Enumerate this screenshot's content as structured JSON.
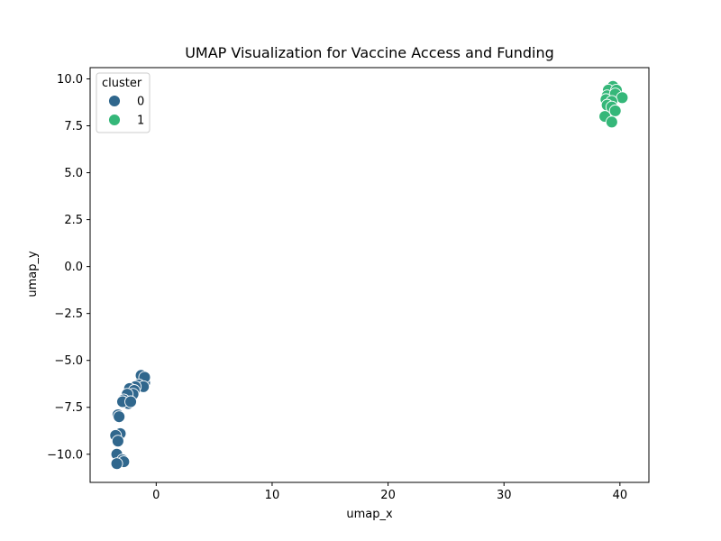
{
  "chart_data": {
    "type": "scatter",
    "title": "UMAP Visualization for Vaccine Access and Funding",
    "xlabel": "umap_x",
    "ylabel": "umap_y",
    "xlim": [
      -5.7,
      42.5
    ],
    "ylim": [
      -11.5,
      10.6
    ],
    "xticks": [
      0,
      10,
      20,
      30,
      40
    ],
    "yticks": [
      -10.0,
      -7.5,
      -5.0,
      -2.5,
      0.0,
      2.5,
      5.0,
      7.5,
      10.0
    ],
    "xtick_labels": [
      "0",
      "10",
      "20",
      "30",
      "40"
    ],
    "ytick_labels": [
      "−10.0",
      "−7.5",
      "−5.0",
      "−2.5",
      "0.0",
      "2.5",
      "5.0",
      "7.5",
      "10.0"
    ],
    "grid": false,
    "legend": {
      "title": "cluster",
      "placement": "top-left",
      "entries": [
        {
          "label": "0",
          "color": "#30678d"
        },
        {
          "label": "1",
          "color": "#35b779"
        }
      ]
    },
    "series": [
      {
        "name": "0",
        "color": "#30678d",
        "points": [
          {
            "x": -1.3,
            "y": -5.8
          },
          {
            "x": -1.0,
            "y": -6.2
          },
          {
            "x": -1.0,
            "y": -5.9
          },
          {
            "x": -1.5,
            "y": -6.3
          },
          {
            "x": -1.1,
            "y": -6.4
          },
          {
            "x": -1.8,
            "y": -6.4
          },
          {
            "x": -2.3,
            "y": -6.5
          },
          {
            "x": -1.9,
            "y": -6.6
          },
          {
            "x": -2.0,
            "y": -6.8
          },
          {
            "x": -2.5,
            "y": -6.8
          },
          {
            "x": -2.8,
            "y": -7.1
          },
          {
            "x": -2.4,
            "y": -7.3
          },
          {
            "x": -2.9,
            "y": -7.2
          },
          {
            "x": -2.2,
            "y": -7.2
          },
          {
            "x": -3.3,
            "y": -7.9
          },
          {
            "x": -3.2,
            "y": -8.0
          },
          {
            "x": -3.1,
            "y": -8.9
          },
          {
            "x": -3.5,
            "y": -9.0
          },
          {
            "x": -3.3,
            "y": -9.3
          },
          {
            "x": -3.4,
            "y": -10.0
          },
          {
            "x": -2.9,
            "y": -10.3
          },
          {
            "x": -2.8,
            "y": -10.4
          },
          {
            "x": -3.4,
            "y": -10.5
          }
        ]
      },
      {
        "name": "1",
        "color": "#35b779",
        "points": [
          {
            "x": 39.4,
            "y": 9.6
          },
          {
            "x": 39.0,
            "y": 9.4
          },
          {
            "x": 39.7,
            "y": 9.4
          },
          {
            "x": 38.9,
            "y": 9.1
          },
          {
            "x": 39.6,
            "y": 9.2
          },
          {
            "x": 40.2,
            "y": 9.0
          },
          {
            "x": 38.8,
            "y": 8.9
          },
          {
            "x": 39.3,
            "y": 8.8
          },
          {
            "x": 38.9,
            "y": 8.6
          },
          {
            "x": 39.3,
            "y": 8.5
          },
          {
            "x": 39.6,
            "y": 8.3
          },
          {
            "x": 38.7,
            "y": 8.0
          },
          {
            "x": 39.3,
            "y": 7.7
          }
        ]
      }
    ]
  }
}
